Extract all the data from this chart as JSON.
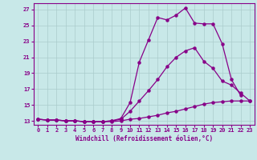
{
  "xlabel": "Windchill (Refroidissement éolien,°C)",
  "bg_color": "#c8e8e8",
  "line_color": "#880088",
  "grid_color": "#aacccc",
  "xlim": [
    -0.5,
    23.5
  ],
  "ylim": [
    12.5,
    27.8
  ],
  "yticks": [
    13,
    15,
    17,
    19,
    21,
    23,
    25,
    27
  ],
  "xticks": [
    0,
    1,
    2,
    3,
    4,
    5,
    6,
    7,
    8,
    9,
    10,
    11,
    12,
    13,
    14,
    15,
    16,
    17,
    18,
    19,
    20,
    21,
    22,
    23
  ],
  "line1_x": [
    0,
    1,
    2,
    3,
    4,
    5,
    6,
    7,
    8,
    9,
    10,
    11,
    12,
    13,
    14,
    15,
    16,
    17,
    18,
    19,
    20,
    21,
    22,
    23
  ],
  "line1_y": [
    13.2,
    13.1,
    13.1,
    13.0,
    13.0,
    12.9,
    12.9,
    12.9,
    12.9,
    13.0,
    13.2,
    13.3,
    13.5,
    13.7,
    14.0,
    14.2,
    14.5,
    14.8,
    15.1,
    15.3,
    15.4,
    15.5,
    15.5,
    15.5
  ],
  "line2_x": [
    0,
    1,
    2,
    3,
    4,
    5,
    6,
    7,
    8,
    9,
    10,
    11,
    12,
    13,
    14,
    15,
    16,
    17,
    18,
    19,
    20,
    21,
    22,
    23
  ],
  "line2_y": [
    13.2,
    13.1,
    13.1,
    13.0,
    13.0,
    12.9,
    12.9,
    12.9,
    13.0,
    13.2,
    14.2,
    15.5,
    16.8,
    18.2,
    19.8,
    21.0,
    21.8,
    22.2,
    20.5,
    19.6,
    18.0,
    17.5,
    16.5,
    15.5
  ],
  "line3_x": [
    0,
    1,
    2,
    3,
    4,
    5,
    6,
    7,
    8,
    9,
    10,
    11,
    12,
    13,
    14,
    15,
    16,
    17,
    18,
    19,
    20,
    21,
    22
  ],
  "line3_y": [
    13.2,
    13.1,
    13.1,
    13.0,
    13.0,
    12.9,
    12.9,
    12.9,
    13.0,
    13.3,
    15.3,
    20.4,
    23.2,
    26.0,
    25.7,
    26.3,
    27.2,
    25.3,
    25.2,
    25.2,
    22.7,
    18.2,
    16.2
  ]
}
